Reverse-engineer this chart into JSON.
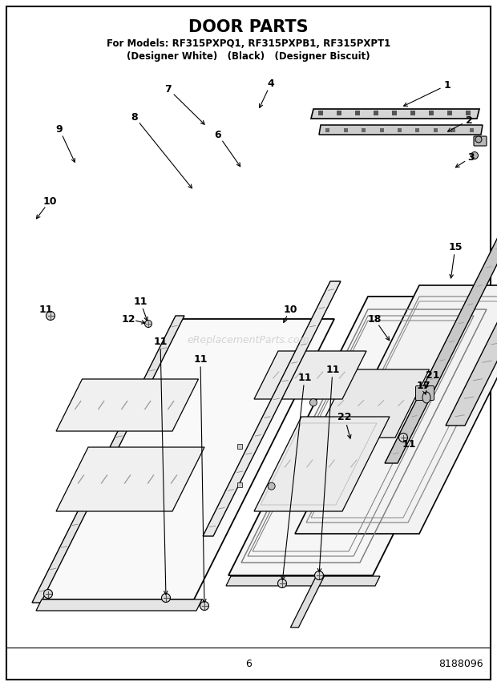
{
  "title": "DOOR PARTS",
  "subtitle_line1": "For Models: RF315PXPQ1, RF315PXPB1, RF315PXPT1",
  "subtitle_line2": "(Designer White)   (Black)   (Designer Biscuit)",
  "page_number": "6",
  "part_number": "8188096",
  "background_color": "#ffffff",
  "title_fontsize": 15,
  "subtitle_fontsize": 8.5,
  "footer_fontsize": 9,
  "watermark_text": "eReplacementParts.com",
  "label_fontsize": 9
}
